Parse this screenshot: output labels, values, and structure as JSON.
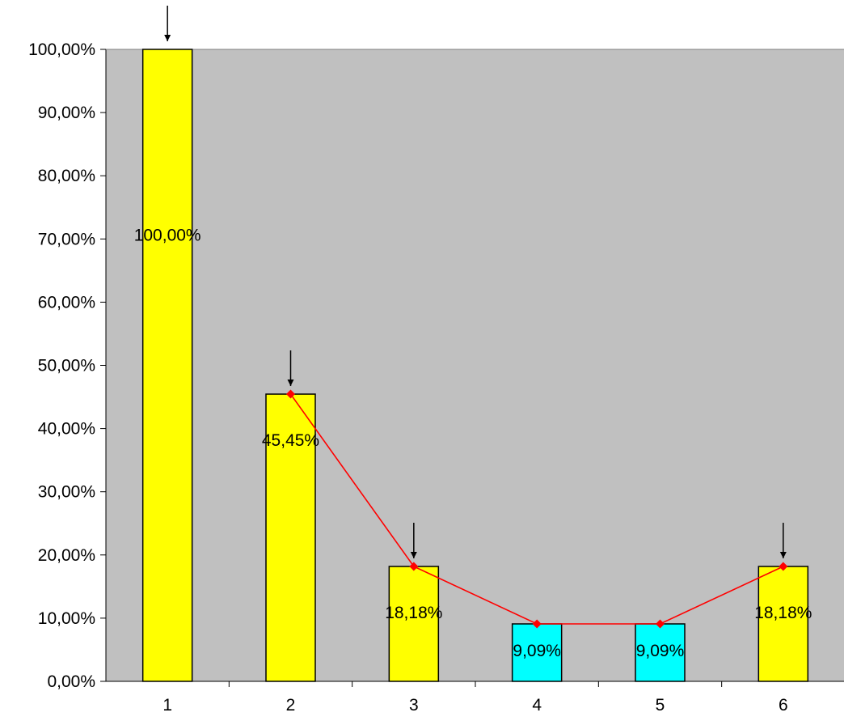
{
  "chart_data": {
    "type": "bar",
    "categories": [
      "1",
      "2",
      "3",
      "4",
      "5",
      "6"
    ],
    "values": [
      100.0,
      45.45,
      18.18,
      9.09,
      9.09,
      18.18
    ],
    "data_labels": [
      "100,00%",
      "45,45%",
      "18,18%",
      "9,09%",
      "9,09%",
      "18,18%"
    ],
    "bar_colors": [
      "#ffff00",
      "#ffff00",
      "#ffff00",
      "#00ffff",
      "#00ffff",
      "#ffff00"
    ],
    "line_overlay": {
      "categories": [
        "2",
        "3",
        "4",
        "5",
        "6"
      ],
      "values": [
        45.45,
        18.18,
        9.09,
        9.09,
        18.18
      ],
      "color": "#ff0000"
    },
    "arrow_markers_at": [
      "1",
      "2",
      "3",
      "6"
    ],
    "y_ticks": [
      "0,00%",
      "10,00%",
      "20,00%",
      "30,00%",
      "40,00%",
      "50,00%",
      "60,00%",
      "70,00%",
      "80,00%",
      "90,00%",
      "100,00%"
    ],
    "ylim": [
      0,
      100
    ],
    "title": "",
    "xlabel": "",
    "ylabel": "",
    "grid": false,
    "plot_background": "#c0c0c0",
    "legend": "none"
  }
}
